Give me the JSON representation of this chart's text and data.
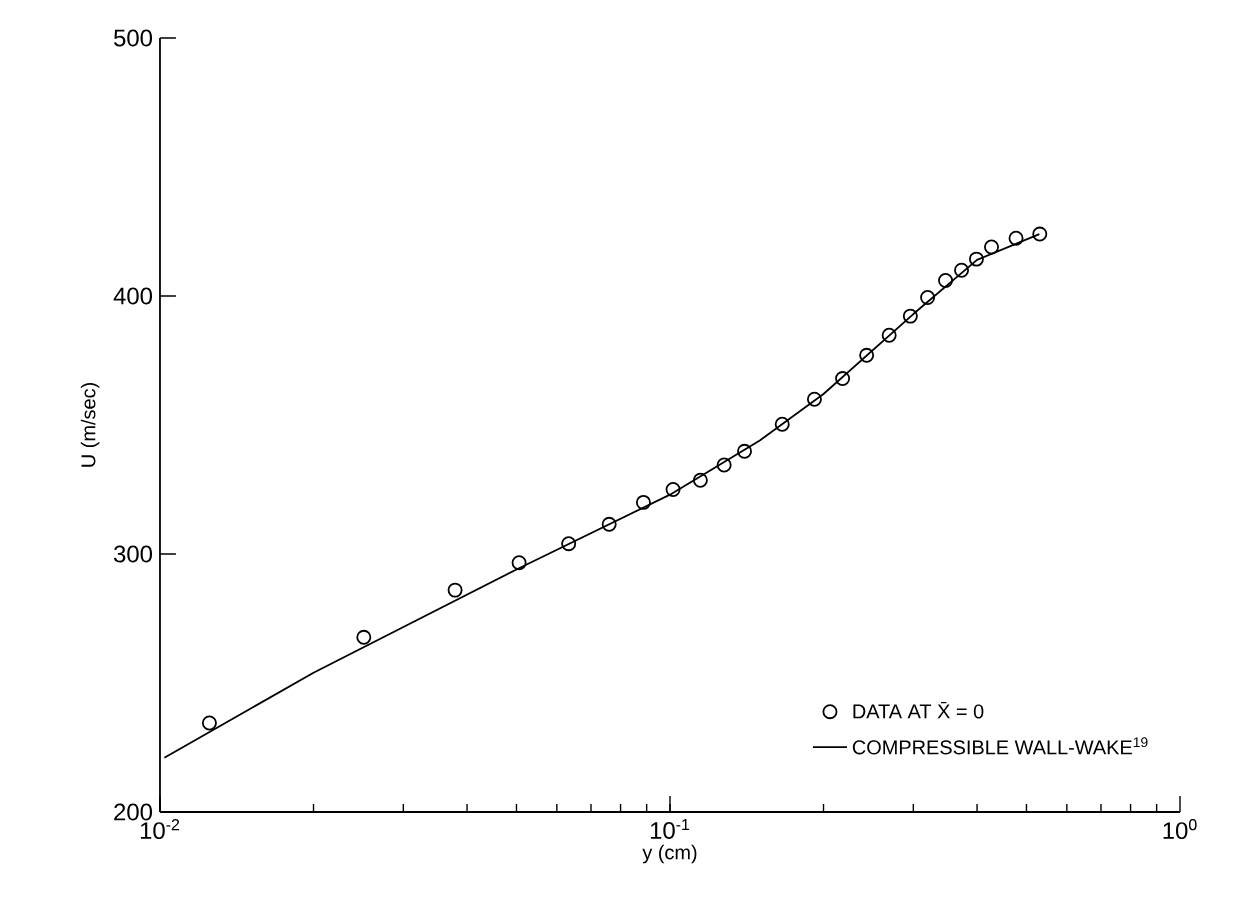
{
  "chart_data": {
    "type": "scatter",
    "xlabel": "y (cm)",
    "ylabel": "U (m/sec)",
    "log": "x",
    "xlim": [
      0.01,
      1
    ],
    "ylim": [
      200,
      500
    ],
    "xticks": [
      {
        "value": 0.01,
        "label": "10$^{-2}$"
      },
      {
        "value": 0.1,
        "label": "10$^{-1}$"
      },
      {
        "value": 1,
        "label": "10$^{0}$"
      }
    ],
    "yticks": [
      200,
      300,
      400,
      500
    ],
    "legend": "bottom right",
    "series": [
      {
        "name": "DATA AT X̄ = 0",
        "marker": "circle",
        "color": "#000000",
        "x": [
          0.0125,
          0.0251,
          0.0379,
          0.0506,
          0.0633,
          0.076,
          0.0887,
          0.1014,
          0.1147,
          0.1277,
          0.14,
          0.166,
          0.192,
          0.218,
          0.243,
          0.269,
          0.296,
          0.32,
          0.347,
          0.373,
          0.399,
          0.427,
          0.477,
          0.531
        ],
        "values": [
          234.5,
          267.7,
          286,
          296.6,
          304,
          311.5,
          320,
          325,
          328.6,
          334.5,
          339.8,
          350.3,
          360,
          368,
          377,
          384.8,
          392.2,
          399.4,
          406,
          410,
          414.3,
          419,
          422.4,
          424
        ]
      },
      {
        "name": "COMPRESSIBLE WALL-WAKE$^{19}$",
        "type": "line",
        "line_style": "solid",
        "color": "#000000",
        "x": [
          0.0102,
          0.02,
          0.05,
          0.1,
          0.15,
          0.2,
          0.3,
          0.4,
          0.53
        ],
        "values": [
          221,
          254,
          294,
          323,
          344,
          362,
          393,
          414,
          424
        ]
      }
    ]
  }
}
